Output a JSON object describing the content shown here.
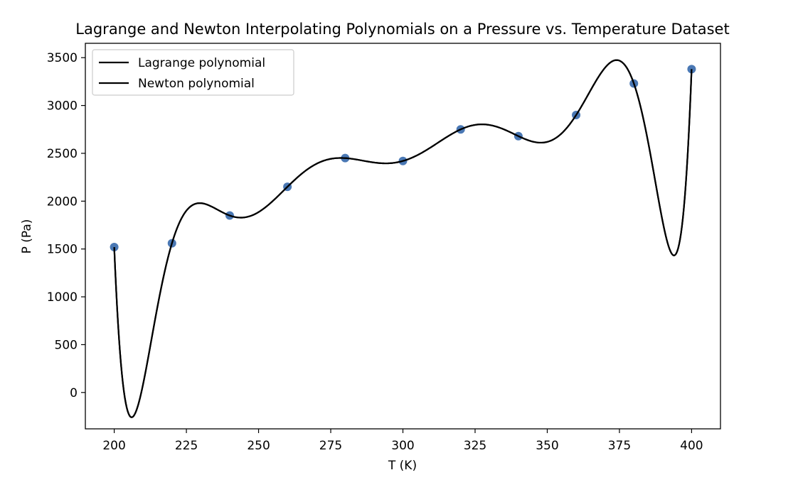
{
  "chart_data": {
    "type": "line",
    "title": "Lagrange and Newton Interpolating Polynomials on a Pressure vs. Temperature Dataset",
    "xlabel": "T (K)",
    "ylabel": "P (Pa)",
    "xlim": [
      190,
      410
    ],
    "ylim": [
      -380,
      3650
    ],
    "xticks": [
      200,
      225,
      250,
      275,
      300,
      325,
      350,
      375,
      400
    ],
    "yticks": [
      0,
      500,
      1000,
      1500,
      2000,
      2500,
      3000,
      3500
    ],
    "grid": false,
    "legend_position": "top-left",
    "data_points": {
      "x": [
        200,
        220,
        240,
        260,
        280,
        300,
        320,
        340,
        360,
        380,
        400
      ],
      "y": [
        1520,
        1560,
        1850,
        2150,
        2450,
        2420,
        2750,
        2680,
        2900,
        3230,
        3380
      ],
      "color": "#4a78b4"
    },
    "series": [
      {
        "name": "Lagrange polynomial",
        "color": "#000000"
      },
      {
        "name": "Newton polynomial",
        "color": "#000000"
      }
    ]
  }
}
